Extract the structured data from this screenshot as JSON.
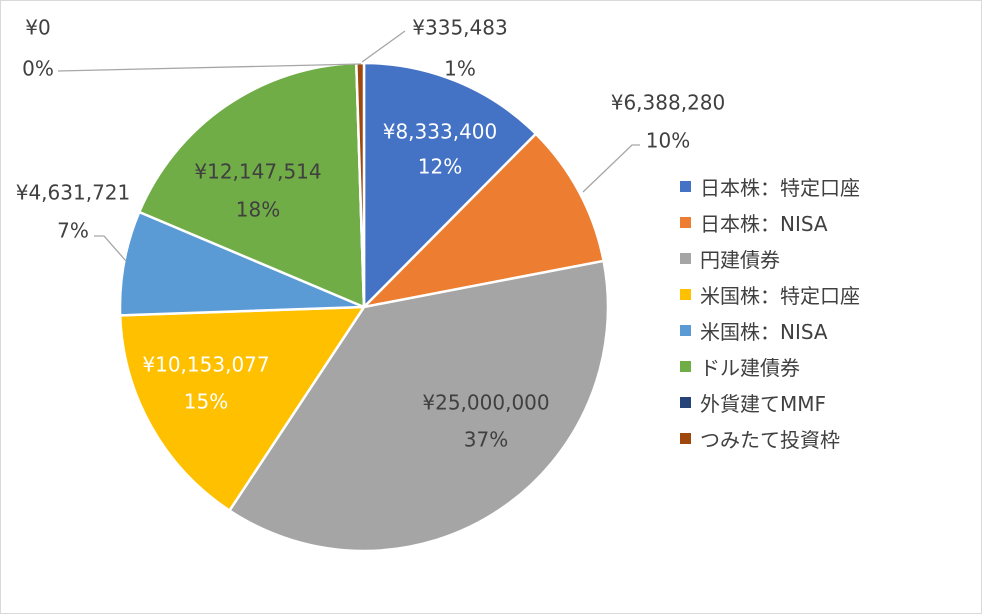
{
  "chart_data": {
    "type": "pie",
    "legend_position": "right",
    "categories": [
      "日本株：特定口座",
      "日本株：NISA",
      "円建債券",
      "米国株：特定口座",
      "米国株：NISA",
      "ドル建債券",
      "外貨建てMMF",
      "つみたて投資枠"
    ],
    "values": [
      8333400,
      6388280,
      25000000,
      10153077,
      4631721,
      12147514,
      0,
      335483
    ],
    "value_labels": [
      "¥8,333,400",
      "¥6,388,280",
      "¥25,000,000",
      "¥10,153,077",
      "¥4,631,721",
      "¥12,147,514",
      "¥0",
      "¥335,483"
    ],
    "percent_labels": [
      "12%",
      "10%",
      "37%",
      "15%",
      "7%",
      "18%",
      "0%",
      "1%"
    ],
    "colors": [
      "#4472C4",
      "#ED7D31",
      "#A5A5A5",
      "#FFC000",
      "#5B9BD5",
      "#70AD47",
      "#264478",
      "#9E480E"
    ]
  }
}
